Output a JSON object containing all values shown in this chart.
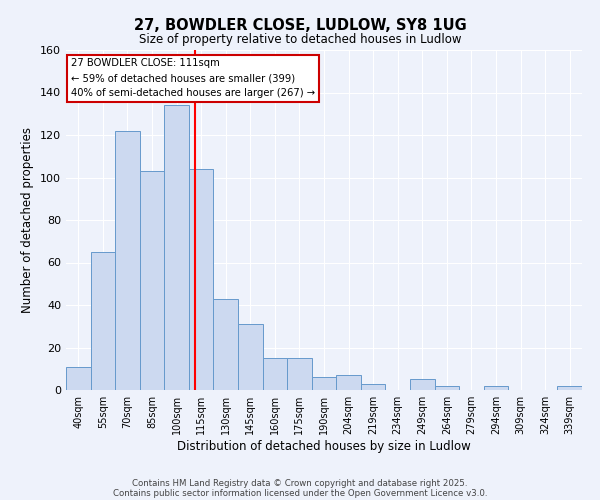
{
  "title": "27, BOWDLER CLOSE, LUDLOW, SY8 1UG",
  "subtitle": "Size of property relative to detached houses in Ludlow",
  "xlabel": "Distribution of detached houses by size in Ludlow",
  "ylabel": "Number of detached properties",
  "categories": [
    "40sqm",
    "55sqm",
    "70sqm",
    "85sqm",
    "100sqm",
    "115sqm",
    "130sqm",
    "145sqm",
    "160sqm",
    "175sqm",
    "190sqm",
    "204sqm",
    "219sqm",
    "234sqm",
    "249sqm",
    "264sqm",
    "279sqm",
    "294sqm",
    "309sqm",
    "324sqm",
    "339sqm"
  ],
  "values": [
    11,
    65,
    122,
    103,
    134,
    104,
    43,
    31,
    15,
    15,
    6,
    7,
    3,
    0,
    5,
    2,
    0,
    2,
    0,
    0,
    2
  ],
  "bar_color": "#ccd9f0",
  "bar_edge_color": "#6699cc",
  "marker_value": 111,
  "annotation_lines": [
    "27 BOWDLER CLOSE: 111sqm",
    "← 59% of detached houses are smaller (399)",
    "40% of semi-detached houses are larger (267) →"
  ],
  "ylim": [
    0,
    160
  ],
  "yticks": [
    0,
    20,
    40,
    60,
    80,
    100,
    120,
    140,
    160
  ],
  "background_color": "#eef2fb",
  "grid_color": "#ffffff",
  "footer_line1": "Contains HM Land Registry data © Crown copyright and database right 2025.",
  "footer_line2": "Contains public sector information licensed under the Open Government Licence v3.0."
}
